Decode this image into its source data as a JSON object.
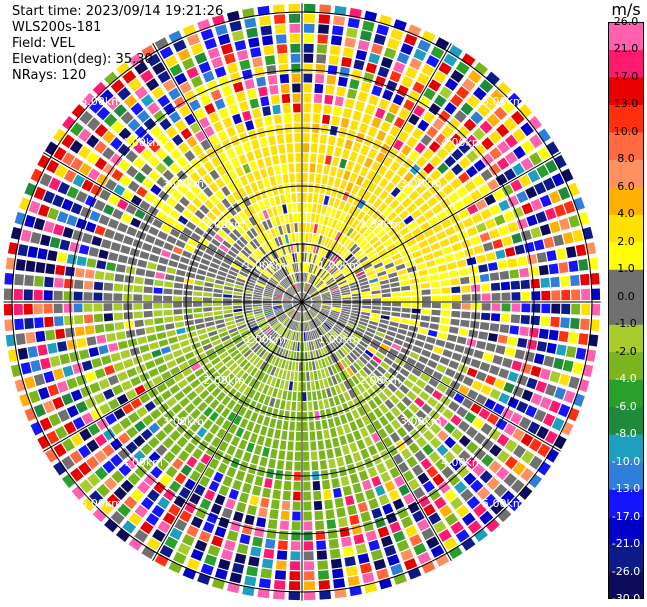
{
  "header": {
    "start_time": "Start time: 2023/09/14 19:21:26",
    "instrument": "WLS200s-181",
    "field": "Field: VEL",
    "elevation": "Elevation(deg): 35.30",
    "nrays": "NRays: 120"
  },
  "chart_data": {
    "type": "heatmap",
    "projection": "polar-ppi",
    "field": "VEL",
    "unit": "m/s",
    "nrays": 120,
    "range_rings_km": [
      1,
      2,
      3,
      4,
      5
    ],
    "ring_labels": [
      "1.00km",
      "2.00km",
      "3.00km",
      "4.00km",
      "5.00km"
    ],
    "max_range_km": 5.15,
    "radial_lines_deg": [
      0,
      30,
      60,
      90,
      120,
      150,
      180,
      210,
      240,
      270,
      300,
      330
    ],
    "colorbar": {
      "label": "m/s",
      "boundaries": [
        -30.0,
        -26.0,
        -21.0,
        -17.0,
        -13.0,
        -10.0,
        -8.0,
        -6.0,
        -4.0,
        -2.0,
        -1.0,
        0.0,
        1.0,
        2.0,
        4.0,
        6.0,
        8.0,
        10.0,
        13.0,
        17.0,
        21.0,
        26.0
      ],
      "tick_labels": [
        "-30.0",
        "-26.0",
        "-21.0",
        "-17.0",
        "-13.0",
        "-10.0",
        "-8.0",
        "-6.0",
        "-4.0",
        "-2.0",
        "-1.0",
        "0.0",
        "1.0",
        "2.0",
        "4.0",
        "6.0",
        "8.0",
        "10.0",
        "13.0",
        "17.0",
        "21.0",
        "26.0"
      ],
      "colors": [
        "#0b0b5a",
        "#0d1a8a",
        "#0000c8",
        "#1414ff",
        "#2e7fd9",
        "#1f9fbf",
        "#1f8a3a",
        "#2aa02a",
        "#7ab51e",
        "#a8cc2c",
        "#707070",
        "#707070",
        "#ffff00",
        "#ffe000",
        "#ffb000",
        "#ff9060",
        "#ff6a40",
        "#ff3010",
        "#e80000",
        "#ff1a70",
        "#ff60b0"
      ]
    },
    "dominant_pattern": {
      "near_zero_gray_region": "center",
      "positive_yellow_region": "north and south-east sectors",
      "negative_green_region": "west and south-west sectors",
      "noisy_multicolor_region": "outer ranges beyond 3 km"
    }
  }
}
